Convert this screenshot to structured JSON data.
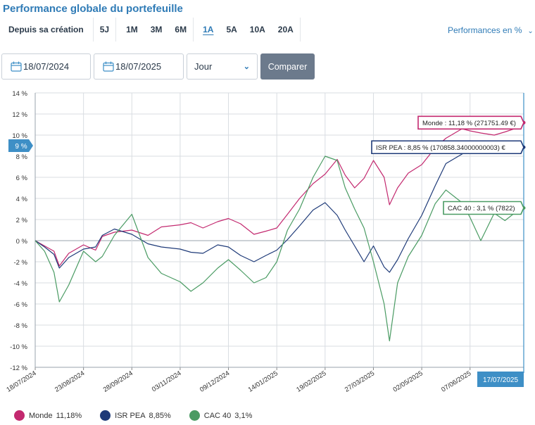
{
  "page": {
    "title": "Performance globale du portefeuille"
  },
  "periods": {
    "items": [
      "Depuis sa création",
      "5J",
      "1M",
      "3M",
      "6M",
      "1A",
      "5A",
      "10A",
      "20A"
    ],
    "active": "1A"
  },
  "perf_mode": {
    "label": "Performances en %"
  },
  "filters": {
    "start_date": "18/07/2024",
    "end_date": "18/07/2025",
    "frequency": "Jour",
    "compare_label": "Comparer"
  },
  "colors": {
    "monde": "#c3296f",
    "isr": "#1e3a78",
    "cac": "#4a9b63",
    "accent": "#3e8fc6",
    "grid": "#d9dde2"
  },
  "chart_data": {
    "type": "line",
    "x_start": "2024-07-18",
    "x_end": "2025-07-17",
    "x_tick_labels": [
      "18/07/2024",
      "23/08/2024",
      "28/09/2024",
      "03/11/2024",
      "09/12/2024",
      "14/01/2025",
      "19/02/2025",
      "27/03/2025",
      "02/05/2025",
      "07/06/2025"
    ],
    "x_tick_dates": [
      "2024-07-18",
      "2024-08-23",
      "2024-09-28",
      "2024-11-03",
      "2024-12-09",
      "2025-01-14",
      "2025-02-19",
      "2025-03-27",
      "2025-05-02",
      "2025-06-07"
    ],
    "y_ticks": [
      14,
      12,
      10,
      8,
      6,
      4,
      2,
      0,
      -2,
      -4,
      -6,
      -8,
      -10,
      -12
    ],
    "y_tick_labels": [
      "14 %",
      "12 %",
      "10 %",
      "8 %",
      "6 %",
      "4 %",
      "2 %",
      "0 %",
      "-2 %",
      "-4 %",
      "-6 %",
      "-8 %",
      "-10 %",
      "-12 %"
    ],
    "ylim": [
      -12,
      14
    ],
    "y_marker": {
      "label": "9 %",
      "value": 9
    },
    "crosshair_date_label": "17/07/2025",
    "series": [
      {
        "key": "monde",
        "name": "Monde",
        "legend_value": "11,18%",
        "tooltip": "Monde : 11,18 % (271751.49 €)",
        "x": [
          "2024-07-18",
          "2024-07-25",
          "2024-08-01",
          "2024-08-05",
          "2024-08-12",
          "2024-08-23",
          "2024-09-01",
          "2024-09-06",
          "2024-09-15",
          "2024-09-28",
          "2024-10-10",
          "2024-10-20",
          "2024-11-03",
          "2024-11-11",
          "2024-11-20",
          "2024-12-01",
          "2024-12-09",
          "2024-12-18",
          "2024-12-28",
          "2025-01-06",
          "2025-01-14",
          "2025-01-22",
          "2025-01-31",
          "2025-02-10",
          "2025-02-19",
          "2025-02-28",
          "2025-03-06",
          "2025-03-13",
          "2025-03-20",
          "2025-03-27",
          "2025-04-04",
          "2025-04-08",
          "2025-04-14",
          "2025-04-22",
          "2025-05-02",
          "2025-05-12",
          "2025-05-20",
          "2025-06-01",
          "2025-06-07",
          "2025-06-15",
          "2025-06-25",
          "2025-07-03",
          "2025-07-10",
          "2025-07-17"
        ],
        "y": [
          0,
          -0.5,
          -1.0,
          -2.4,
          -1.2,
          -0.4,
          -0.9,
          0.4,
          0.8,
          1.0,
          0.5,
          1.3,
          1.5,
          1.7,
          1.2,
          1.8,
          2.1,
          1.6,
          0.6,
          0.9,
          1.2,
          2.5,
          4.0,
          5.4,
          6.3,
          7.7,
          6.2,
          5.0,
          5.9,
          7.6,
          6.0,
          3.4,
          5.0,
          6.4,
          7.2,
          8.8,
          9.7,
          10.6,
          10.4,
          10.2,
          10.0,
          10.3,
          10.6,
          11.18
        ]
      },
      {
        "key": "isr",
        "name": "ISR PEA",
        "legend_value": "8,85%",
        "tooltip": "ISR PEA : 8,85 % (170858.34000000003) €",
        "x": [
          "2024-07-18",
          "2024-07-25",
          "2024-08-01",
          "2024-08-05",
          "2024-08-12",
          "2024-08-23",
          "2024-09-01",
          "2024-09-06",
          "2024-09-15",
          "2024-09-28",
          "2024-10-10",
          "2024-10-20",
          "2024-11-03",
          "2024-11-11",
          "2024-11-20",
          "2024-12-01",
          "2024-12-09",
          "2024-12-18",
          "2024-12-28",
          "2025-01-06",
          "2025-01-14",
          "2025-01-22",
          "2025-01-31",
          "2025-02-10",
          "2025-02-19",
          "2025-02-28",
          "2025-03-06",
          "2025-03-13",
          "2025-03-20",
          "2025-03-27",
          "2025-04-04",
          "2025-04-08",
          "2025-04-14",
          "2025-04-22",
          "2025-05-02",
          "2025-05-12",
          "2025-05-20",
          "2025-06-01",
          "2025-06-07",
          "2025-06-15",
          "2025-06-25",
          "2025-07-03",
          "2025-07-10",
          "2025-07-17"
        ],
        "y": [
          0,
          -0.6,
          -1.3,
          -2.6,
          -1.6,
          -0.8,
          -0.6,
          0.5,
          1.1,
          0.6,
          -0.3,
          -0.6,
          -0.8,
          -1.1,
          -1.2,
          -0.4,
          -0.6,
          -1.4,
          -2.0,
          -1.4,
          -0.9,
          0.1,
          1.4,
          2.9,
          3.6,
          2.4,
          1.0,
          -0.5,
          -2.0,
          -0.5,
          -2.5,
          -3.0,
          -1.8,
          0.2,
          2.4,
          5.2,
          7.3,
          8.2,
          8.5,
          8.8,
          8.6,
          8.7,
          8.8,
          8.85
        ]
      },
      {
        "key": "cac",
        "name": "CAC 40",
        "legend_value": "3,1%",
        "tooltip": "CAC 40 : 3,1 % (7822)",
        "x": [
          "2024-07-18",
          "2024-07-25",
          "2024-08-01",
          "2024-08-05",
          "2024-08-12",
          "2024-08-23",
          "2024-09-01",
          "2024-09-06",
          "2024-09-15",
          "2024-09-28",
          "2024-10-10",
          "2024-10-20",
          "2024-11-03",
          "2024-11-11",
          "2024-11-20",
          "2024-12-01",
          "2024-12-09",
          "2024-12-18",
          "2024-12-28",
          "2025-01-06",
          "2025-01-14",
          "2025-01-22",
          "2025-01-31",
          "2025-02-10",
          "2025-02-19",
          "2025-02-28",
          "2025-03-06",
          "2025-03-13",
          "2025-03-20",
          "2025-03-27",
          "2025-04-04",
          "2025-04-08",
          "2025-04-14",
          "2025-04-22",
          "2025-05-02",
          "2025-05-12",
          "2025-05-20",
          "2025-06-01",
          "2025-06-07",
          "2025-06-15",
          "2025-06-25",
          "2025-07-03",
          "2025-07-10",
          "2025-07-17"
        ],
        "y": [
          0,
          -1.0,
          -3.0,
          -5.8,
          -4.2,
          -1.0,
          -2.0,
          -1.5,
          0.5,
          2.5,
          -1.6,
          -3.1,
          -3.9,
          -4.8,
          -4.0,
          -2.6,
          -1.8,
          -2.8,
          -4.0,
          -3.5,
          -2.0,
          1.0,
          3.0,
          6.0,
          8.0,
          7.6,
          5.0,
          3.0,
          1.2,
          -2.0,
          -6.0,
          -9.5,
          -4.0,
          -1.5,
          0.5,
          3.5,
          4.8,
          3.6,
          2.2,
          0.0,
          2.6,
          1.9,
          2.6,
          3.1
        ]
      }
    ]
  }
}
